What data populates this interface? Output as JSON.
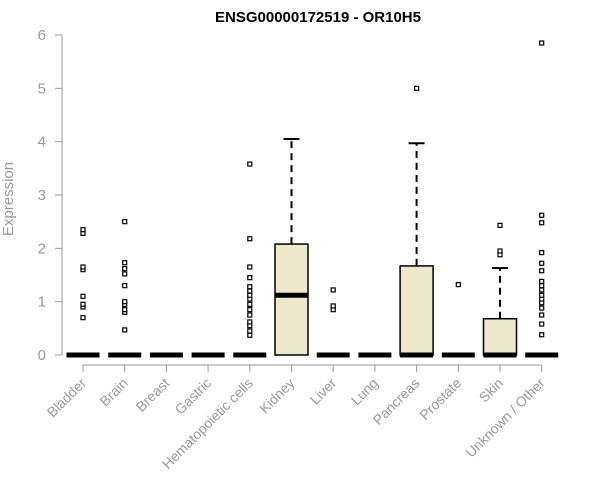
{
  "chart_data": {
    "type": "boxplot",
    "title": "ENSG00000172519 - OR10H5",
    "xlabel": "",
    "ylabel": "Expression",
    "ylim": [
      0,
      6
    ],
    "yticks": [
      0,
      1,
      2,
      3,
      4,
      5,
      6
    ],
    "grid": false,
    "legend": "none",
    "box_fill": "#ede8cc",
    "box_stroke": "#000000",
    "categories": [
      "Bladder",
      "Brain",
      "Breast",
      "Gastric",
      "Hematopoietic cells",
      "Kidney",
      "Liver",
      "Lung",
      "Pancreas",
      "Prostate",
      "Skin",
      "Unknown / Other"
    ],
    "boxes": [
      {
        "category": "Bladder",
        "min": 0,
        "q1": 0,
        "median": 0,
        "q3": 0,
        "max": 0,
        "outliers": [
          0.7,
          0.9,
          0.95,
          1.1,
          1.6,
          1.65,
          2.28,
          2.35
        ]
      },
      {
        "category": "Brain",
        "min": 0,
        "q1": 0,
        "median": 0,
        "q3": 0,
        "max": 0,
        "outliers": [
          0.47,
          0.8,
          0.85,
          0.95,
          1.0,
          1.3,
          1.52,
          1.62,
          1.73,
          2.5
        ]
      },
      {
        "category": "Breast",
        "min": 0,
        "q1": 0,
        "median": 0,
        "q3": 0,
        "max": 0,
        "outliers": []
      },
      {
        "category": "Gastric",
        "min": 0,
        "q1": 0,
        "median": 0,
        "q3": 0,
        "max": 0,
        "outliers": []
      },
      {
        "category": "Hematopoietic cells",
        "min": 0,
        "q1": 0,
        "median": 0,
        "q3": 0,
        "max": 0,
        "outliers": [
          0.37,
          0.45,
          0.55,
          0.62,
          0.75,
          0.85,
          0.95,
          1.05,
          1.12,
          1.2,
          1.28,
          1.45,
          1.65,
          2.18,
          3.58
        ]
      },
      {
        "category": "Kidney",
        "min": 0,
        "q1": 0,
        "median": 1.12,
        "q3": 2.08,
        "max": 4.05,
        "outliers": []
      },
      {
        "category": "Liver",
        "min": 0,
        "q1": 0,
        "median": 0,
        "q3": 0,
        "max": 0,
        "outliers": [
          0.85,
          0.92,
          1.22
        ]
      },
      {
        "category": "Lung",
        "min": 0,
        "q1": 0,
        "median": 0,
        "q3": 0,
        "max": 0,
        "outliers": []
      },
      {
        "category": "Pancreas",
        "min": 0,
        "q1": 0,
        "median": 0,
        "q3": 1.67,
        "max": 3.97,
        "outliers": [
          5.0
        ]
      },
      {
        "category": "Prostate",
        "min": 0,
        "q1": 0,
        "median": 0,
        "q3": 0,
        "max": 0,
        "outliers": [
          1.32
        ]
      },
      {
        "category": "Skin",
        "min": 0,
        "q1": 0,
        "median": 0,
        "q3": 0.68,
        "max": 1.63,
        "outliers": [
          1.88,
          1.95,
          2.43
        ]
      },
      {
        "category": "Unknown / Other",
        "min": 0,
        "q1": 0,
        "median": 0,
        "q3": 0,
        "max": 0,
        "outliers": [
          0.38,
          0.58,
          0.75,
          0.88,
          0.98,
          1.05,
          1.12,
          1.22,
          1.3,
          1.38,
          1.58,
          1.72,
          1.92,
          2.48,
          2.62,
          5.85
        ]
      }
    ]
  }
}
